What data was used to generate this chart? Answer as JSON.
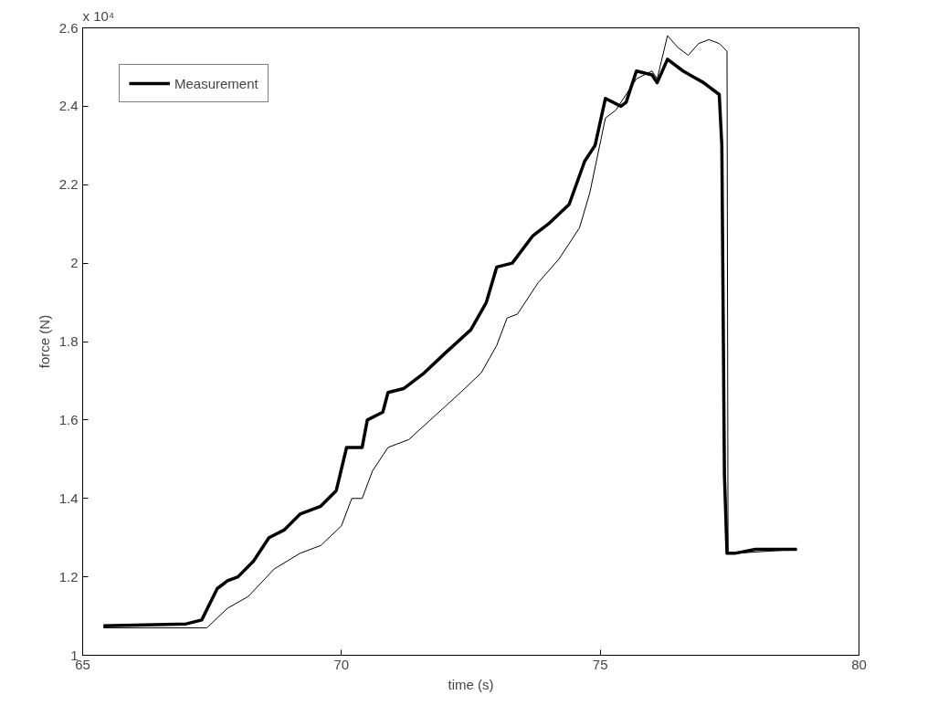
{
  "chart_data": {
    "type": "line",
    "xlabel": "time (s)",
    "ylabel": "force (N)",
    "annotations": [
      "x 10⁴"
    ],
    "xlim": [
      65,
      80
    ],
    "xticks": [
      65,
      70,
      75,
      80
    ],
    "ylim": [
      1,
      2.6
    ],
    "yticks": [
      1,
      1.2,
      1.4,
      1.6,
      1.8,
      2,
      2.2,
      2.4,
      2.6
    ],
    "grid": false,
    "legend": "top left",
    "series": [
      {
        "name": "Measurement",
        "color": "#000000",
        "x": [
          65.4,
          67.0,
          67.3,
          67.6,
          67.8,
          68.0,
          68.3,
          68.6,
          68.9,
          69.2,
          69.6,
          69.9,
          70.1,
          70.4,
          70.5,
          70.8,
          70.9,
          71.2,
          71.6,
          72.0,
          72.5,
          72.8,
          73.0,
          73.3,
          73.7,
          74.0,
          74.4,
          74.7,
          74.9,
          75.1,
          75.4,
          75.5,
          75.7,
          76.0,
          76.1,
          76.3,
          76.6,
          77.0,
          77.3,
          77.35,
          77.4,
          77.45,
          77.6,
          78.0,
          78.8
        ],
        "values": [
          1.075,
          1.08,
          1.09,
          1.17,
          1.19,
          1.2,
          1.24,
          1.3,
          1.32,
          1.36,
          1.38,
          1.42,
          1.53,
          1.53,
          1.6,
          1.62,
          1.67,
          1.68,
          1.72,
          1.77,
          1.83,
          1.9,
          1.99,
          2.0,
          2.07,
          2.1,
          2.15,
          2.26,
          2.3,
          2.42,
          2.4,
          2.41,
          2.49,
          2.48,
          2.46,
          2.52,
          2.49,
          2.46,
          2.43,
          2.3,
          1.46,
          1.26,
          1.26,
          1.27,
          1.27
        ]
      },
      {
        "color": "#000000",
        "x": [
          65.4,
          67.4,
          67.8,
          68.2,
          68.7,
          69.2,
          69.6,
          70.0,
          70.2,
          70.4,
          70.6,
          70.9,
          71.3,
          71.8,
          72.3,
          72.7,
          73.0,
          73.2,
          73.4,
          73.8,
          74.2,
          74.6,
          74.8,
          75.1,
          75.3,
          75.7,
          76.0,
          76.1,
          76.3,
          76.5,
          76.7,
          76.9,
          77.1,
          77.3,
          77.45,
          77.47,
          77.6,
          78.8
        ],
        "values": [
          1.07,
          1.07,
          1.12,
          1.15,
          1.22,
          1.26,
          1.28,
          1.33,
          1.4,
          1.4,
          1.47,
          1.53,
          1.55,
          1.61,
          1.67,
          1.72,
          1.79,
          1.86,
          1.87,
          1.95,
          2.01,
          2.09,
          2.18,
          2.37,
          2.39,
          2.47,
          2.49,
          2.47,
          2.58,
          2.55,
          2.53,
          2.56,
          2.57,
          2.56,
          2.54,
          1.26,
          1.26,
          1.27
        ]
      }
    ]
  }
}
